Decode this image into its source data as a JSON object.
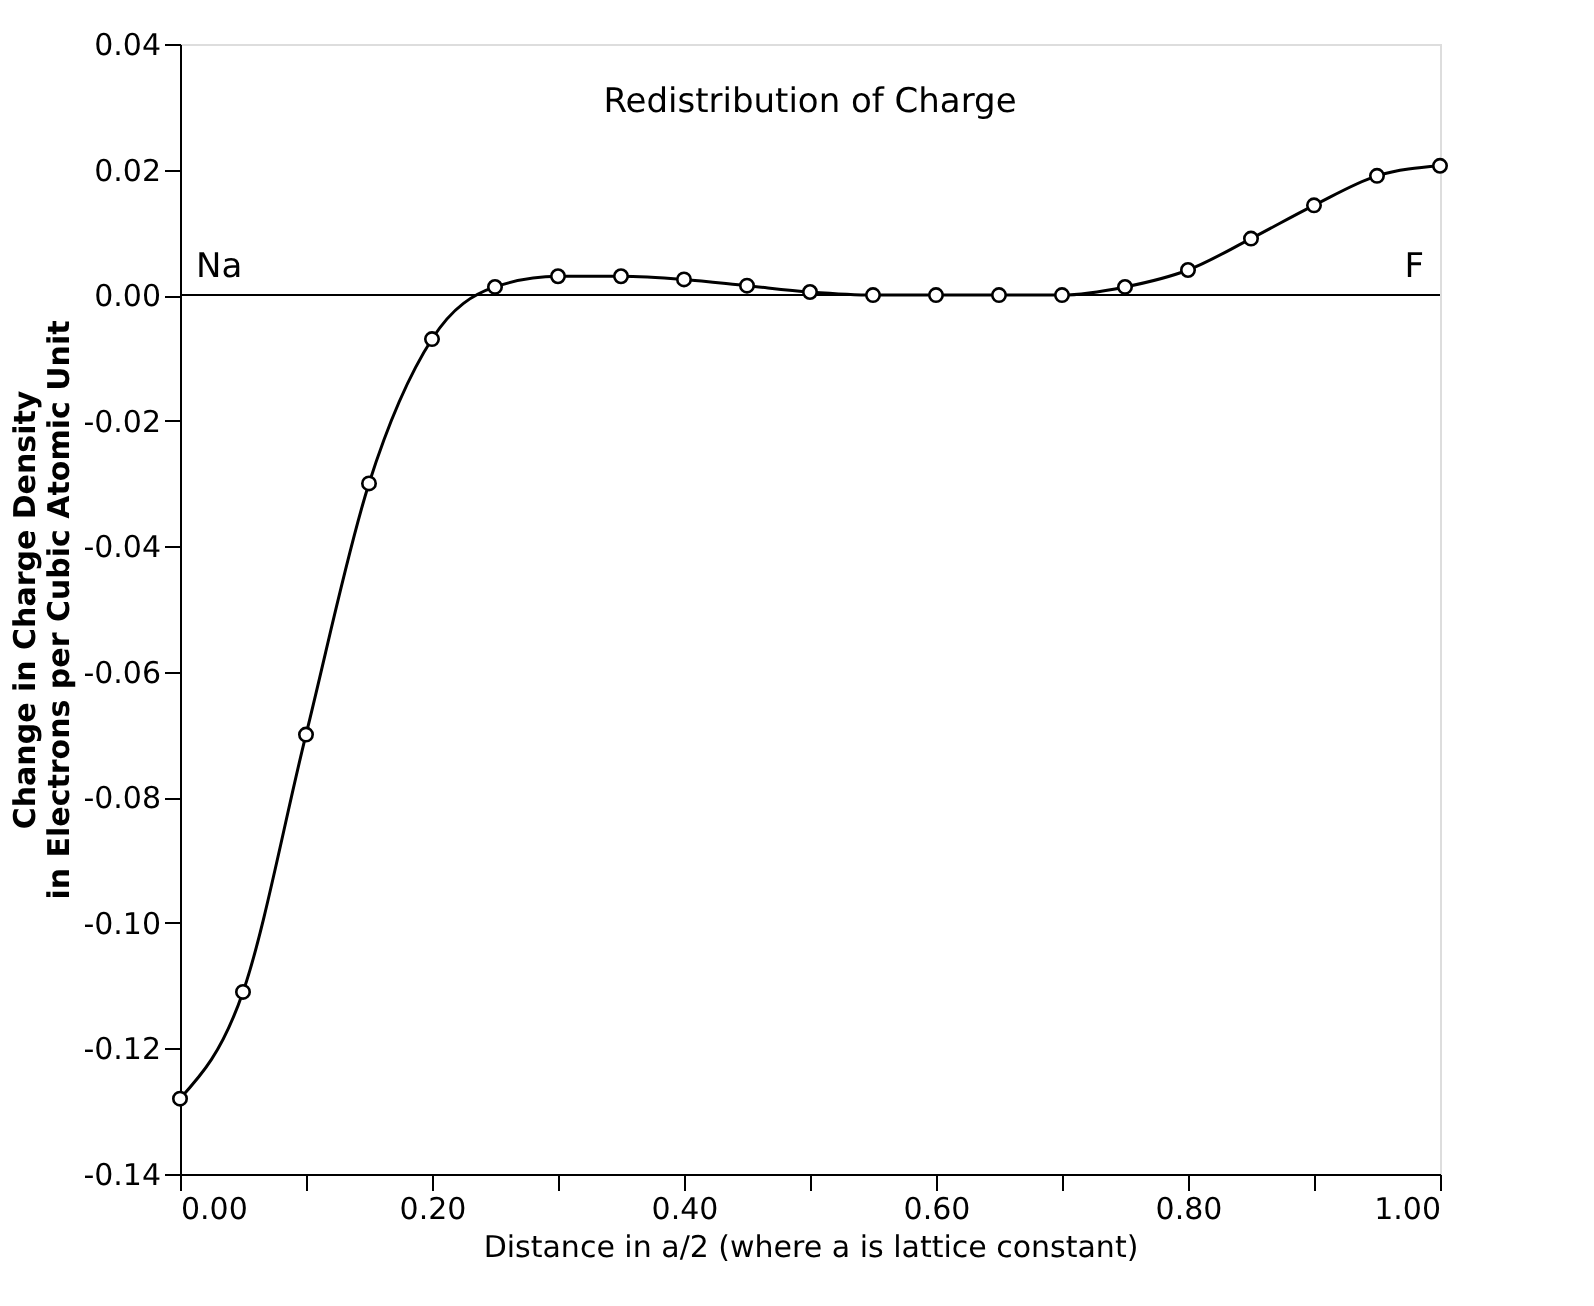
{
  "chart_data": {
    "type": "line",
    "title": "Redistribution of Charge",
    "xlabel": "Distance in a/2  (where a is lattice constant)",
    "ylabel": "Change in Charge Density\nin Electrons per Cubic Atomic Unit",
    "x": [
      0.0,
      0.05,
      0.1,
      0.15,
      0.2,
      0.25,
      0.3,
      0.35,
      0.4,
      0.45,
      0.5,
      0.55,
      0.6,
      0.65,
      0.7,
      0.75,
      0.8,
      0.85,
      0.9,
      0.95,
      1.0
    ],
    "series": [
      {
        "color": "#000000",
        "values": [
          -0.128,
          -0.111,
          -0.07,
          -0.03,
          -0.007,
          0.0013,
          0.003,
          0.003,
          0.0025,
          0.0015,
          0.0005,
          0.0,
          0.0,
          0.0,
          0.0,
          0.0013,
          0.004,
          0.009,
          0.0143,
          0.019,
          0.0206
        ]
      }
    ],
    "xlim": [
      0,
      1
    ],
    "ylim": [
      -0.14,
      0.04
    ],
    "xticks": [
      {
        "value": 0,
        "label": "0.00"
      },
      {
        "value": 0.1,
        "label": null
      },
      {
        "value": 0.2,
        "label": "0.20"
      },
      {
        "value": 0.3,
        "label": null
      },
      {
        "value": 0.4,
        "label": "0.40"
      },
      {
        "value": 0.5,
        "label": null
      },
      {
        "value": 0.6,
        "label": "0.60"
      },
      {
        "value": 0.7,
        "label": null
      },
      {
        "value": 0.8,
        "label": "0.80"
      },
      {
        "value": 0.9,
        "label": null
      },
      {
        "value": 1,
        "label": "1.00"
      }
    ],
    "yticks": [
      {
        "value": -0.14,
        "label": "-0.14"
      },
      {
        "value": -0.12,
        "label": "-0.12"
      },
      {
        "value": -0.1,
        "label": "-0.10"
      },
      {
        "value": -0.08,
        "label": "-0.08"
      },
      {
        "value": -0.06,
        "label": "-0.06"
      },
      {
        "value": -0.04,
        "label": "-0.04"
      },
      {
        "value": -0.02,
        "label": "-0.02"
      },
      {
        "value": 0,
        "label": "0.00"
      },
      {
        "value": 0.02,
        "label": "0.02"
      },
      {
        "value": 0.04,
        "label": "0.04"
      }
    ],
    "ref_lines": [
      {
        "axis": "y",
        "value": 0,
        "color": "#000000"
      }
    ],
    "annotations": [
      {
        "text": "Na",
        "x": 0,
        "y": 0
      },
      {
        "text": "F",
        "x": 1,
        "y": 0
      }
    ],
    "marker": "circle",
    "line_style": "solid",
    "grid": false
  }
}
